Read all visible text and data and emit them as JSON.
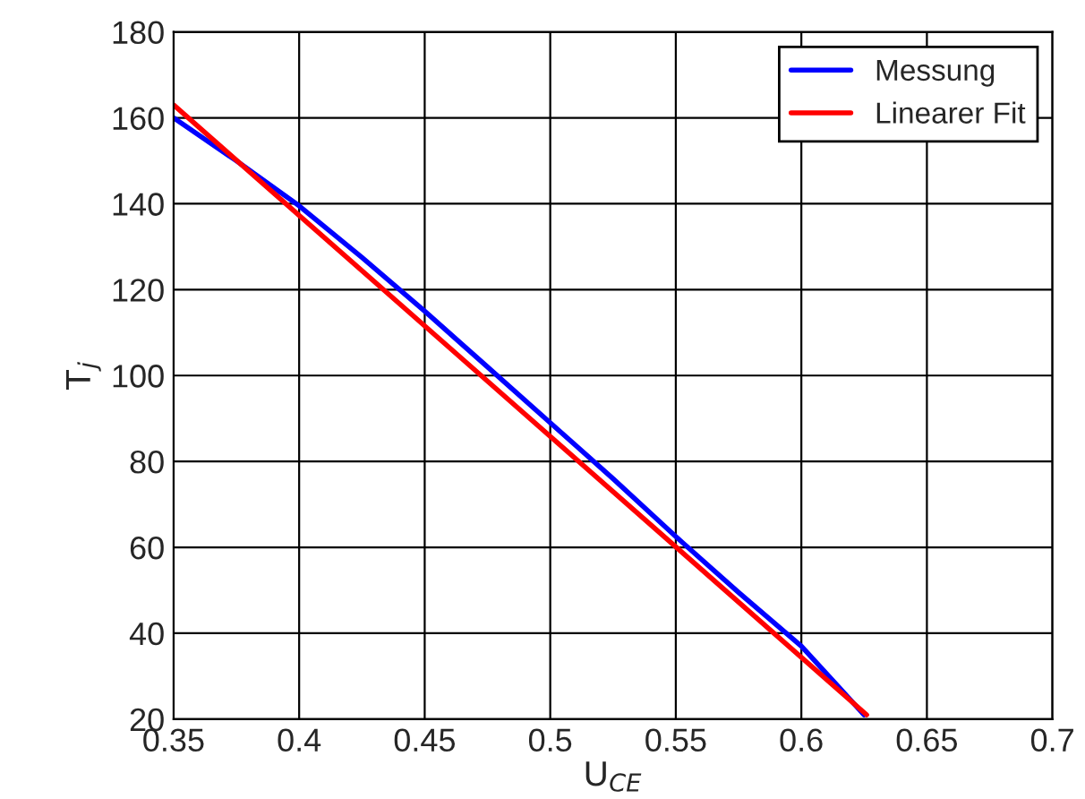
{
  "chart_data": {
    "type": "line",
    "xlabel": "U$_{CE}$",
    "ylabel": "T$_{j}$",
    "xlim": [
      0.35,
      0.7
    ],
    "ylim": [
      20,
      180
    ],
    "xticks": [
      0.35,
      0.4,
      0.45,
      0.5,
      0.55,
      0.6,
      0.65,
      0.7
    ],
    "yticks": [
      20,
      40,
      60,
      80,
      100,
      120,
      140,
      160,
      180
    ],
    "grid": true,
    "legend": "top right",
    "series": [
      {
        "name": "Messung",
        "color": "#0000ff",
        "x": [
          0.35,
          0.375,
          0.4,
          0.425,
          0.45,
          0.475,
          0.5,
          0.525,
          0.55,
          0.575,
          0.6,
          0.625
        ],
        "values": [
          160,
          150,
          139.5,
          127.5,
          115,
          102,
          89,
          76,
          62.5,
          49.5,
          37,
          21
        ]
      },
      {
        "name": "Linearer Fit",
        "color": "#ff0000",
        "x": [
          0.35,
          0.626
        ],
        "values": [
          163,
          21
        ]
      }
    ]
  }
}
